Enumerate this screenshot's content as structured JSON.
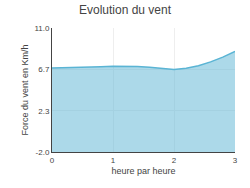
{
  "chart_data": {
    "type": "area",
    "title": "Evolution du vent",
    "xlabel": "heure par heure",
    "ylabel": "Force du vent en Km/h",
    "x": [
      0,
      0.2,
      0.4,
      0.6,
      0.8,
      1.0,
      1.2,
      1.4,
      1.6,
      1.8,
      2.0,
      2.2,
      2.4,
      2.6,
      2.8,
      3.0
    ],
    "values": [
      6.8,
      6.82,
      6.88,
      6.92,
      6.94,
      7.0,
      7.0,
      6.96,
      6.88,
      6.78,
      6.65,
      6.78,
      7.05,
      7.45,
      7.95,
      8.55
    ],
    "color": "#5ab4d4",
    "xlim": [
      0,
      3
    ],
    "xticks": [
      0,
      1,
      2,
      3
    ],
    "ylim": [
      -2.0,
      11.0
    ],
    "yticks": [
      {
        "value": -2.0,
        "label": "-2.0"
      },
      2.3,
      6.7,
      {
        "value": 11.0,
        "label": "11.0"
      }
    ],
    "grid": true
  }
}
